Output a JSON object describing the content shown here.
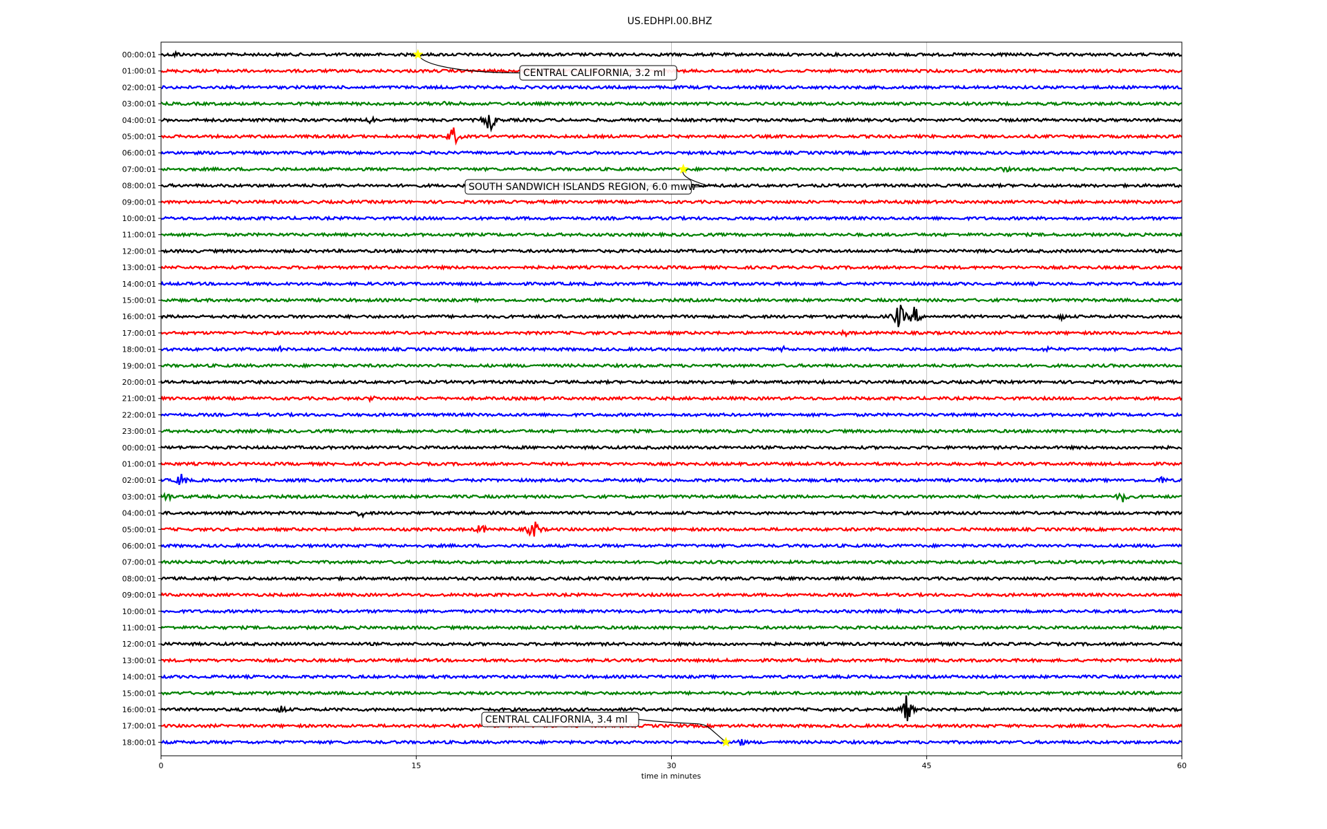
{
  "chart_data": {
    "type": "line",
    "title": "US.EDHPI.00.BHZ",
    "xlabel": "time in minutes",
    "ylabel": "",
    "xlim": [
      0,
      60
    ],
    "x_ticks": [
      "0",
      "15",
      "30",
      "45",
      "60"
    ],
    "grid": "vertical",
    "trace_colors": [
      "#000000",
      "#ff0000",
      "#0000ff",
      "#008000"
    ],
    "rows": [
      "00:00:01",
      "01:00:01",
      "02:00:01",
      "03:00:01",
      "04:00:01",
      "05:00:01",
      "06:00:01",
      "07:00:01",
      "08:00:01",
      "09:00:01",
      "10:00:01",
      "11:00:01",
      "12:00:01",
      "13:00:01",
      "14:00:01",
      "15:00:01",
      "16:00:01",
      "17:00:01",
      "18:00:01",
      "19:00:01",
      "20:00:01",
      "21:00:01",
      "22:00:01",
      "23:00:01",
      "00:00:01",
      "01:00:01",
      "02:00:01",
      "03:00:01",
      "04:00:01",
      "05:00:01",
      "06:00:01",
      "07:00:01",
      "08:00:01",
      "09:00:01",
      "10:00:01",
      "11:00:01",
      "12:00:01",
      "13:00:01",
      "14:00:01",
      "15:00:01",
      "16:00:01",
      "17:00:01",
      "18:00:01"
    ],
    "events": [
      {
        "row": 0,
        "minute": 15.1,
        "label": "CENTRAL CALIFORNIA, 3.2 ml"
      },
      {
        "row": 7,
        "minute": 30.7,
        "label": "SOUTH SANDWICH ISLANDS REGION, 6.0 mww"
      },
      {
        "row": 42,
        "minute": 33.2,
        "label": "CENTRAL CALIFORNIA, 3.4 ml"
      }
    ],
    "marker_color": "#ffff00",
    "bursts": [
      {
        "row": 0,
        "minute": 0.9,
        "amp": 6
      },
      {
        "row": 3,
        "minute": 16.6,
        "amp": 6
      },
      {
        "row": 3,
        "minute": 17.8,
        "amp": 5
      },
      {
        "row": 4,
        "minute": 12.3,
        "amp": 8
      },
      {
        "row": 4,
        "minute": 19.3,
        "amp": 20
      },
      {
        "row": 5,
        "minute": 17.2,
        "amp": 16
      },
      {
        "row": 7,
        "minute": 49.6,
        "amp": 6
      },
      {
        "row": 16,
        "minute": 43.4,
        "amp": 22
      },
      {
        "row": 16,
        "minute": 44.3,
        "amp": 16
      },
      {
        "row": 16,
        "minute": 52.9,
        "amp": 7
      },
      {
        "row": 17,
        "minute": 40.2,
        "amp": 6
      },
      {
        "row": 18,
        "minute": 7.0,
        "amp": 5
      },
      {
        "row": 18,
        "minute": 36.6,
        "amp": 5
      },
      {
        "row": 18,
        "minute": 52.1,
        "amp": 6
      },
      {
        "row": 20,
        "minute": 39.0,
        "amp": 5
      },
      {
        "row": 21,
        "minute": 12.4,
        "amp": 6
      },
      {
        "row": 26,
        "minute": 1.2,
        "amp": 12
      },
      {
        "row": 26,
        "minute": 58.8,
        "amp": 8
      },
      {
        "row": 27,
        "minute": 0.3,
        "amp": 10
      },
      {
        "row": 27,
        "minute": 56.5,
        "amp": 10
      },
      {
        "row": 28,
        "minute": 11.8,
        "amp": 8
      },
      {
        "row": 29,
        "minute": 18.8,
        "amp": 10
      },
      {
        "row": 29,
        "minute": 21.9,
        "amp": 18
      },
      {
        "row": 40,
        "minute": 7.1,
        "amp": 8
      },
      {
        "row": 40,
        "minute": 43.8,
        "amp": 22
      },
      {
        "row": 42,
        "minute": 34.0,
        "amp": 9
      }
    ]
  }
}
